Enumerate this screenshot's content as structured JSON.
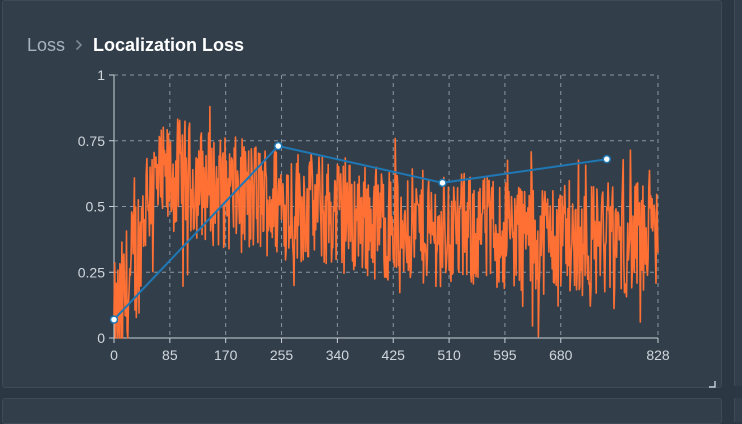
{
  "breadcrumb": {
    "parent": "Loss",
    "current": "Localization Loss"
  },
  "icons": {
    "separator": "chevron-right-icon",
    "resize": "resize-corner-icon"
  },
  "colors": {
    "raw_series": "#ff7034",
    "smoothed_series": "#1f77b4",
    "marker_fill": "#ffffff",
    "grid": "#8a96a1"
  },
  "chart_data": {
    "type": "line",
    "title": "Localization Loss",
    "xlabel": "",
    "ylabel": "",
    "xlim": [
      0,
      828
    ],
    "ylim": [
      0,
      1
    ],
    "x_ticks": [
      0,
      85,
      170,
      255,
      340,
      425,
      510,
      595,
      680,
      828
    ],
    "y_ticks": [
      0,
      0.25,
      0.5,
      0.75,
      1
    ],
    "y_tick_labels": [
      "0",
      "0.25",
      "0.5",
      "0.75",
      "1"
    ],
    "grid": true,
    "legend": "none",
    "series": [
      {
        "style": "line",
        "color": "#ff7034",
        "x_range": [
          0,
          828
        ],
        "approx_trend": [
          [
            0,
            0.0
          ],
          [
            30,
            0.25
          ],
          [
            50,
            0.55
          ],
          [
            100,
            0.62
          ],
          [
            170,
            0.55
          ],
          [
            255,
            0.52
          ],
          [
            340,
            0.47
          ],
          [
            425,
            0.43
          ],
          [
            510,
            0.41
          ],
          [
            595,
            0.4
          ],
          [
            680,
            0.38
          ],
          [
            828,
            0.37
          ]
        ],
        "approx_min": 0.0,
        "approx_max": 0.88
      },
      {
        "style": "line+markers",
        "color": "#1f77b4",
        "x": [
          0,
          250,
          500,
          750
        ],
        "y": [
          0.07,
          0.73,
          0.59,
          0.68
        ]
      }
    ]
  }
}
